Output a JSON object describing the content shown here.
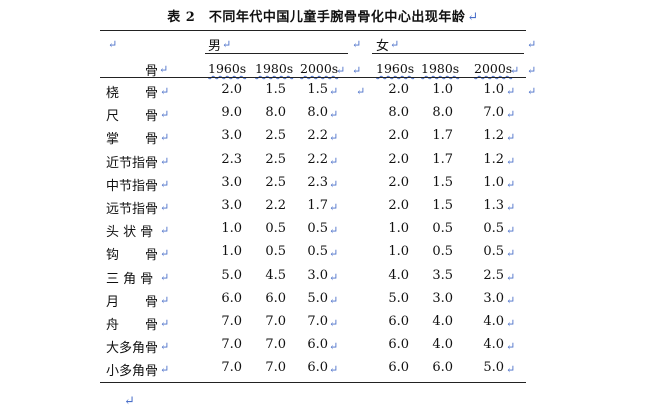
{
  "title": "表 2　不同年代中国儿童手腕骨骨化中心出现年龄",
  "paragraph_mark": "↵",
  "header": {
    "bone_col": "骨",
    "male": "男",
    "female": "女",
    "years": [
      "1960s",
      "1980s",
      "2000s"
    ]
  },
  "rows": [
    {
      "bone": "桡　　骨",
      "male": [
        "2.0",
        "1.5",
        "1.5"
      ],
      "female": [
        "2.0",
        "1.0",
        "1.0"
      ]
    },
    {
      "bone": "尺　　骨",
      "male": [
        "9.0",
        "8.0",
        "8.0"
      ],
      "female": [
        "8.0",
        "8.0",
        "7.0"
      ]
    },
    {
      "bone": "掌　　骨",
      "male": [
        "3.0",
        "2.5",
        "2.2"
      ],
      "female": [
        "2.0",
        "1.7",
        "1.2"
      ]
    },
    {
      "bone": "近节指骨",
      "male": [
        "2.3",
        "2.5",
        "2.2"
      ],
      "female": [
        "2.0",
        "1.7",
        "1.2"
      ]
    },
    {
      "bone": "中节指骨",
      "male": [
        "3.0",
        "2.5",
        "2.3"
      ],
      "female": [
        "2.0",
        "1.5",
        "1.0"
      ]
    },
    {
      "bone": "远节指骨",
      "male": [
        "3.0",
        "2.2",
        "1.7"
      ],
      "female": [
        "2.0",
        "1.5",
        "1.3"
      ]
    },
    {
      "bone": "头 状 骨",
      "male": [
        "1.0",
        "0.5",
        "0.5"
      ],
      "female": [
        "1.0",
        "0.5",
        "0.5"
      ]
    },
    {
      "bone": "钩　　骨",
      "male": [
        "1.0",
        "0.5",
        "0.5"
      ],
      "female": [
        "1.0",
        "0.5",
        "0.5"
      ]
    },
    {
      "bone": "三 角 骨",
      "male": [
        "5.0",
        "4.5",
        "3.0"
      ],
      "female": [
        "4.0",
        "3.5",
        "2.5"
      ]
    },
    {
      "bone": "月　　骨",
      "male": [
        "6.0",
        "6.0",
        "5.0"
      ],
      "female": [
        "5.0",
        "3.0",
        "3.0"
      ]
    },
    {
      "bone": "舟　　骨",
      "male": [
        "7.0",
        "7.0",
        "7.0"
      ],
      "female": [
        "6.0",
        "4.0",
        "4.0"
      ]
    },
    {
      "bone": "大多角骨",
      "male": [
        "7.0",
        "7.0",
        "6.0"
      ],
      "female": [
        "6.0",
        "4.0",
        "4.0"
      ]
    },
    {
      "bone": "小多角骨",
      "male": [
        "7.0",
        "7.0",
        "6.0"
      ],
      "female": [
        "6.0",
        "6.0",
        "5.0"
      ]
    }
  ]
}
